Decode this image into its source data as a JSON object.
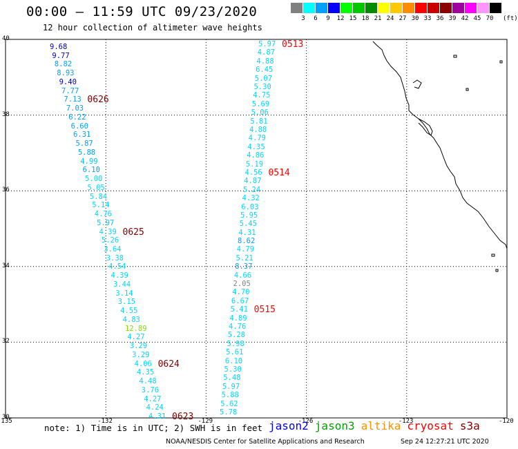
{
  "header": {
    "title": "00:00 – 11:59 UTC 09/23/2020",
    "subtitle": "12 hour collection of altimeter wave heights"
  },
  "color_scale": {
    "unit": "(ft)",
    "bins": [
      {
        "label": "3",
        "color": "#808080"
      },
      {
        "label": "6",
        "color": "#00ffff"
      },
      {
        "label": "9",
        "color": "#00a0ff"
      },
      {
        "label": "12",
        "color": "#0000ff"
      },
      {
        "label": "15",
        "color": "#00ff00"
      },
      {
        "label": "18",
        "color": "#00c800"
      },
      {
        "label": "21",
        "color": "#008c00"
      },
      {
        "label": "24",
        "color": "#ffff00"
      },
      {
        "label": "27",
        "color": "#ffc800"
      },
      {
        "label": "30",
        "color": "#ff8c00"
      },
      {
        "label": "33",
        "color": "#ff0000"
      },
      {
        "label": "36",
        "color": "#c80000"
      },
      {
        "label": "39",
        "color": "#8c0000"
      },
      {
        "label": "42",
        "color": "#a000a0"
      },
      {
        "label": "45",
        "color": "#ff00ff"
      },
      {
        "label": "70",
        "color": "#ff96ff"
      },
      {
        "label": "",
        "color": "#000000"
      }
    ]
  },
  "axes": {
    "lon_ticks": [
      "-135",
      "-132",
      "-129",
      "-126",
      "-123",
      "-120"
    ],
    "lat_ticks": [
      "40",
      "38",
      "36",
      "34",
      "32",
      "30"
    ],
    "lon_range": [
      -135,
      -120
    ],
    "lat_range": [
      30,
      40
    ]
  },
  "tracks": [
    {
      "name": "west",
      "points": [
        {
          "v": "9.68",
          "c": "#0000c8"
        },
        {
          "v": "9.77",
          "c": "#0000c8"
        },
        {
          "v": "8.82",
          "c": "#00a0ff"
        },
        {
          "v": "8.93",
          "c": "#00a0ff"
        },
        {
          "v": "9.40",
          "c": "#0000c8"
        },
        {
          "v": "7.77",
          "c": "#00a0ff"
        },
        {
          "v": "7.13",
          "c": "#00a0ff"
        },
        {
          "v": "7.03",
          "c": "#00a0ff"
        },
        {
          "v": "6.22",
          "c": "#00a0ff"
        },
        {
          "v": "6.60",
          "c": "#00a0ff"
        },
        {
          "v": "6.31",
          "c": "#00a0ff"
        },
        {
          "v": "5.87",
          "c": "#00a0ff"
        },
        {
          "v": "5.88",
          "c": "#00a0ff"
        },
        {
          "v": "4.99",
          "c": "#00c8ff"
        },
        {
          "v": "6.10",
          "c": "#00a0ff"
        },
        {
          "v": "5.00",
          "c": "#00d8ff"
        },
        {
          "v": "5.05",
          "c": "#00d8ff"
        },
        {
          "v": "5.84",
          "c": "#00d8ff"
        },
        {
          "v": "5.14",
          "c": "#00d8ff"
        },
        {
          "v": "4.76",
          "c": "#00d8ff"
        },
        {
          "v": "5.97",
          "c": "#00c8ff"
        },
        {
          "v": "4.39",
          "c": "#00d8ff"
        },
        {
          "v": "5.26",
          "c": "#00d8ff"
        },
        {
          "v": "3.64",
          "c": "#00d8ff"
        },
        {
          "v": "3.38",
          "c": "#00d8ff"
        },
        {
          "v": "4.54",
          "c": "#00d8ff"
        },
        {
          "v": "4.39",
          "c": "#00d8ff"
        },
        {
          "v": "3.44",
          "c": "#00d8ff"
        },
        {
          "v": "3.14",
          "c": "#00d8ff"
        },
        {
          "v": "3.15",
          "c": "#00d8ff"
        },
        {
          "v": "4.55",
          "c": "#00d8ff"
        },
        {
          "v": "4.83",
          "c": "#00d8ff"
        },
        {
          "v": "12.89",
          "c": "#80e000"
        },
        {
          "v": "4.27",
          "c": "#00d8ff"
        },
        {
          "v": "3.29",
          "c": "#00d8ff"
        },
        {
          "v": "3.29",
          "c": "#00d8ff"
        },
        {
          "v": "4.06",
          "c": "#00d8ff"
        },
        {
          "v": "4.35",
          "c": "#00d8ff"
        },
        {
          "v": "4.48",
          "c": "#00d8ff"
        },
        {
          "v": "3.76",
          "c": "#00d8ff"
        },
        {
          "v": "4.27",
          "c": "#00d8ff"
        },
        {
          "v": "4.24",
          "c": "#00d8ff"
        },
        {
          "v": "4.31",
          "c": "#00d8ff"
        }
      ],
      "labels": [
        {
          "text": "0626",
          "color": "#800000",
          "at": 6
        },
        {
          "text": "0625",
          "color": "#800000",
          "at": 21
        },
        {
          "text": "0624",
          "color": "#800000",
          "at": 36
        },
        {
          "text": "0623",
          "color": "#800000",
          "at": 42
        }
      ]
    },
    {
      "name": "east",
      "points": [
        {
          "v": "5.97",
          "c": "#00d8ff"
        },
        {
          "v": "4.87",
          "c": "#00d8ff"
        },
        {
          "v": "4.88",
          "c": "#00d8ff"
        },
        {
          "v": "6.45",
          "c": "#00d8ff"
        },
        {
          "v": "5.07",
          "c": "#00d8ff"
        },
        {
          "v": "5.30",
          "c": "#00d8ff"
        },
        {
          "v": "4.75",
          "c": "#00d8ff"
        },
        {
          "v": "5.69",
          "c": "#00d8ff"
        },
        {
          "v": "5.06",
          "c": "#00d8ff"
        },
        {
          "v": "5.81",
          "c": "#00d8ff"
        },
        {
          "v": "4.88",
          "c": "#00d8ff"
        },
        {
          "v": "4.79",
          "c": "#00d8ff"
        },
        {
          "v": "4.35",
          "c": "#00d8ff"
        },
        {
          "v": "4.86",
          "c": "#00d8ff"
        },
        {
          "v": "5.19",
          "c": "#00d8ff"
        },
        {
          "v": "4.56",
          "c": "#00d8ff"
        },
        {
          "v": "4.87",
          "c": "#00d8ff"
        },
        {
          "v": "5.24",
          "c": "#00d8ff"
        },
        {
          "v": "4.32",
          "c": "#00d8ff"
        },
        {
          "v": "6.03",
          "c": "#00d8ff"
        },
        {
          "v": "5.95",
          "c": "#00d8ff"
        },
        {
          "v": "5.45",
          "c": "#00d8ff"
        },
        {
          "v": "4.31",
          "c": "#00d8ff"
        },
        {
          "v": "8.62",
          "c": "#00a0ff"
        },
        {
          "v": "4.79",
          "c": "#00d8ff"
        },
        {
          "v": "5.21",
          "c": "#00d8ff"
        },
        {
          "v": "8.37",
          "c": "#00a0ff"
        },
        {
          "v": "4.66",
          "c": "#00d8ff"
        },
        {
          "v": "2.05",
          "c": "#808080"
        },
        {
          "v": "4.70",
          "c": "#00d8ff"
        },
        {
          "v": "6.67",
          "c": "#00d8ff"
        },
        {
          "v": "5.41",
          "c": "#00d8ff"
        },
        {
          "v": "4.89",
          "c": "#00d8ff"
        },
        {
          "v": "4.76",
          "c": "#00d8ff"
        },
        {
          "v": "5.28",
          "c": "#00d8ff"
        },
        {
          "v": "5.98",
          "c": "#00d8ff"
        },
        {
          "v": "5.61",
          "c": "#00d8ff"
        },
        {
          "v": "6.10",
          "c": "#00d8ff"
        },
        {
          "v": "5.30",
          "c": "#00d8ff"
        },
        {
          "v": "5.48",
          "c": "#00d8ff"
        },
        {
          "v": "5.97",
          "c": "#00d8ff"
        },
        {
          "v": "5.88",
          "c": "#00d8ff"
        },
        {
          "v": "5.62",
          "c": "#00d8ff"
        },
        {
          "v": "5.78",
          "c": "#00d8ff"
        }
      ],
      "labels": [
        {
          "text": "0513",
          "color": "#ff0000",
          "at": 0
        },
        {
          "text": "0514",
          "color": "#ff0000",
          "at": 15
        },
        {
          "text": "0515",
          "color": "#ff0000",
          "at": 31
        }
      ]
    }
  ],
  "footer": {
    "note": "note: 1) Time is in UTC; 2) SWH is in feet",
    "legend": [
      {
        "name": "jason2",
        "color": "#0000ff"
      },
      {
        "name": "jason3",
        "color": "#00a000"
      },
      {
        "name": "altika",
        "color": "#ff9000"
      },
      {
        "name": "cryosat",
        "color": "#ff0000"
      },
      {
        "name": "s3a",
        "color": "#800000"
      }
    ],
    "credit": "NOAA/NESDIS Center for Satellite Applications and Research",
    "timestamp": "Sep 24 12:27:21 UTC 2020"
  }
}
